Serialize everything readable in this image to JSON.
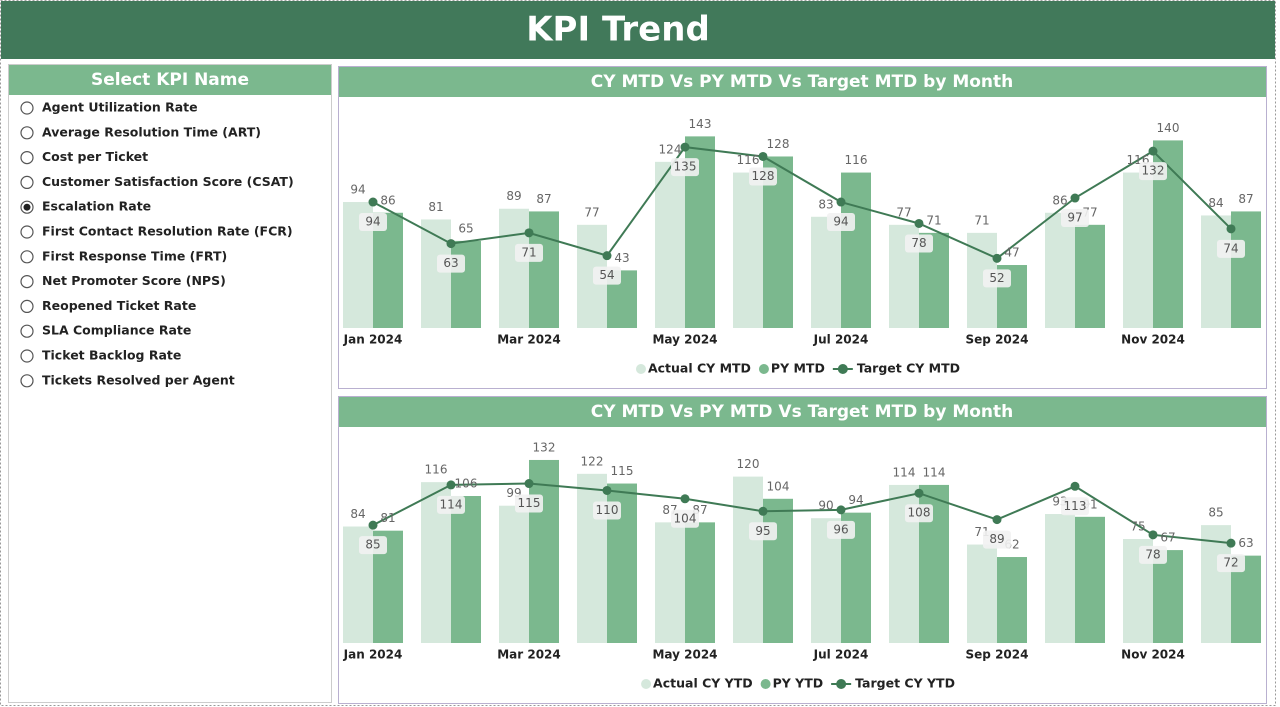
{
  "header": {
    "title": "KPI Trend"
  },
  "kpi_selector": {
    "title": "Select KPI Name",
    "options": [
      "Agent Utilization Rate",
      "Average Resolution Time (ART)",
      "Cost per Ticket",
      "Customer Satisfaction Score (CSAT)",
      "Escalation Rate",
      "First Contact Resolution Rate (FCR)",
      "First Response Time (FRT)",
      "Net Promoter Score (NPS)",
      "Reopened Ticket Rate",
      "SLA Compliance Rate",
      "Ticket Backlog Rate",
      "Tickets Resolved per Agent"
    ],
    "selected_index": 4
  },
  "chart_data": [
    {
      "type": "combo",
      "title": "CY MTD Vs PY MTD Vs Target MTD by Month",
      "categories": [
        "Jan 2024",
        null,
        "Mar 2024",
        null,
        "May 2024",
        null,
        "Jul 2024",
        null,
        "Sep 2024",
        null,
        "Nov 2024",
        null
      ],
      "ylim": [
        0,
        150
      ],
      "series": [
        {
          "name": "Actual CY MTD",
          "type": "bar",
          "color": "#d5e8dc",
          "values": [
            94,
            81,
            89,
            77,
            124,
            116,
            83,
            77,
            71,
            86,
            116,
            84
          ]
        },
        {
          "name": "PY MTD",
          "type": "bar",
          "color": "#7bb88e",
          "values": [
            86,
            65,
            87,
            43,
            143,
            128,
            116,
            71,
            47,
            77,
            140,
            87
          ]
        },
        {
          "name": "Target CY MTD",
          "type": "line",
          "color": "#3f7a55",
          "values": [
            94,
            63,
            71,
            54,
            135,
            128,
            94,
            78,
            52,
            97,
            132,
            74
          ]
        }
      ]
    },
    {
      "type": "combo",
      "title": "CY MTD Vs PY MTD Vs Target MTD by Month",
      "categories": [
        "Jan 2024",
        null,
        "Mar 2024",
        null,
        "May 2024",
        null,
        "Jul 2024",
        null,
        "Sep 2024",
        null,
        "Nov 2024",
        null
      ],
      "ylim": [
        0,
        150
      ],
      "series": [
        {
          "name": "Actual CY YTD",
          "type": "bar",
          "color": "#d5e8dc",
          "values": [
            84,
            116,
            99,
            122,
            87,
            120,
            90,
            114,
            71,
            93,
            75,
            85
          ]
        },
        {
          "name": "PY YTD",
          "type": "bar",
          "color": "#7bb88e",
          "values": [
            81,
            106,
            132,
            115,
            87,
            104,
            94,
            114,
            62,
            91,
            67,
            63
          ]
        },
        {
          "name": "Target CY YTD",
          "type": "line",
          "color": "#3f7a55",
          "values": [
            85,
            114,
            115,
            110,
            104,
            95,
            96,
            108,
            89,
            113,
            78,
            72
          ]
        }
      ]
    }
  ]
}
